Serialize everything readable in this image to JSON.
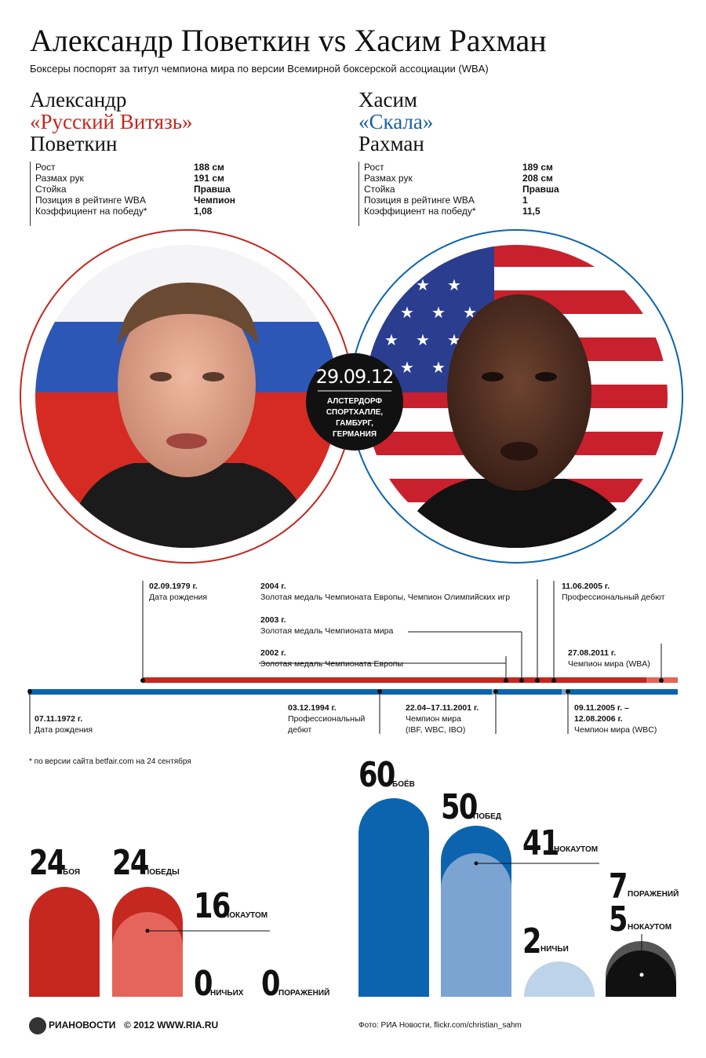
{
  "header": {
    "title": "Александр Поветкин vs Хасим Рахман",
    "subtitle": "Боксеры поспорят за титул чемпиона мира по версии Всемирной боксерской ассоциации (WBA)"
  },
  "fighter1": {
    "first": "Александр",
    "nick": "«Русский Витязь»",
    "last": "Поветкин",
    "stats": [
      {
        "k": "Рост",
        "v": "188 см"
      },
      {
        "k": "Размах рук",
        "v": "191 см"
      },
      {
        "k": "Стойка",
        "v": "Правша"
      },
      {
        "k": "Позиция в рейтинге WBA",
        "v": "Чемпион"
      },
      {
        "k": "Коэффициент на победу*",
        "v": "1,08"
      }
    ]
  },
  "fighter2": {
    "first": "Хасим",
    "nick": "«Скала»",
    "last": "Рахман",
    "stats": [
      {
        "k": "Рост",
        "v": "189 см"
      },
      {
        "k": "Размах рук",
        "v": "208 см"
      },
      {
        "k": "Стойка",
        "v": "Правша"
      },
      {
        "k": "Позиция в рейтинге WBA",
        "v": "1"
      },
      {
        "k": "Коэффициент на победу*",
        "v": "11,5"
      }
    ]
  },
  "event": {
    "date": "29.09.12",
    "venue1": "АЛСТЕРДОРФ",
    "venue2": "СПОРТХАЛЛЕ,",
    "venue3": "ГАМБУРГ,",
    "venue4": "ГЕРМАНИЯ"
  },
  "timeline_top": {
    "t1_date": "02.09.1979 г.",
    "t1_text": "Дата рождения",
    "t2_date": "2004 г.",
    "t2_text": "Золотая медаль Чемпионата Европы, Чемпион Олимпийских игр",
    "t3_date": "2003 г.",
    "t3_text": "Золотая медаль Чемпионата мира",
    "t4_date": "2002 г.",
    "t4_text": "Золотая медаль Чемпионата Европы",
    "t5_date": "11.06.2005 г.",
    "t5_text": "Профессиональный дебют",
    "t6_date": "27.08.2011 г.",
    "t6_text": "Чемпион мира (WBA)"
  },
  "timeline_bottom": {
    "b1_date": "07.11.1972 г.",
    "b1_text": "Дата рождения",
    "b2_date": "03.12.1994 г.",
    "b2_text1": "Профессиональный",
    "b2_text2": "дебют",
    "b3_date": "22.04–17.11.2001 г.",
    "b3_text1": "Чемпион мира",
    "b3_text2": "(IBF, WBC, IBO)",
    "b4_date1": "09.11.2005 г. –",
    "b4_date2": "12.08.2006 г.",
    "b4_text": "Чемпион мира (WBC)"
  },
  "footnote": "* по версии сайта betfair.com на 24 сентября",
  "povetkin_record": {
    "bouts": "24",
    "bouts_lbl": "БОЯ",
    "wins": "24",
    "wins_lbl": "ПОБЕДЫ",
    "ko": "16",
    "ko_lbl": "НОКАУТОМ",
    "draws": "0",
    "draws_lbl": "НИЧЬИХ",
    "losses": "0",
    "losses_lbl": "ПОРАЖЕНИЙ"
  },
  "rahman_record": {
    "bouts": "60",
    "bouts_lbl": "БОЁВ",
    "wins": "50",
    "wins_lbl": "ПОБЕД",
    "ko": "41",
    "ko_lbl": "НОКАУТОМ",
    "draws": "2",
    "draws_lbl": "НИЧЬИ",
    "losses": "7",
    "losses_lbl": "ПОРАЖЕНИЙ",
    "lko": "5",
    "lko_lbl": "НОКАУТОМ"
  },
  "footer": {
    "logo": "РИАНОВОСТИ",
    "copyright": "© 2012 WWW.RIA.RU",
    "credits": "Фото: РИА Новости, flickr.com/christian_sahm"
  },
  "colors": {
    "red": "#c4281f",
    "red_light": "#e5655c",
    "blue": "#0c64ae",
    "blue_mid": "#7ba4d3",
    "blue_light": "#bcd3ea"
  }
}
